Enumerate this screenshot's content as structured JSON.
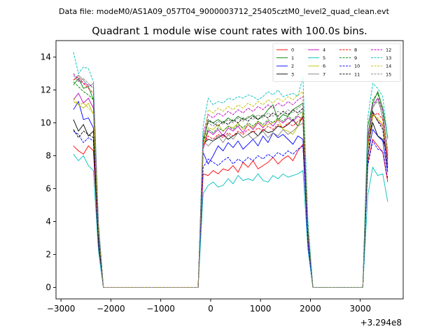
{
  "figure": {
    "suptitle": "Data file: modeM0/AS1A09_057T04_9000003712_25405cztM0_level2_quad_clean.evt",
    "offset_text": "+3.294e8"
  },
  "chart_data": {
    "type": "line",
    "title": "Quadrant 1 module wise count rates with 100.0s bins.",
    "xlabel": "",
    "ylabel": "",
    "xlim": [
      -3100,
      3860
    ],
    "ylim": [
      -0.7,
      15.0
    ],
    "x_ticks": [
      -3000,
      -2000,
      -1000,
      0,
      1000,
      2000,
      3000
    ],
    "x_tick_labels": [
      "−3000",
      "−2000",
      "−1000",
      "0",
      "1000",
      "2000",
      "3000"
    ],
    "y_ticks": [
      0,
      2,
      4,
      6,
      8,
      10,
      12,
      14
    ],
    "y_tick_labels": [
      "0",
      "2",
      "4",
      "6",
      "8",
      "10",
      "12",
      "14"
    ],
    "grid": false,
    "legend_position": "top-right",
    "legend_columns": 4,
    "x": [
      -2750,
      -2650,
      -2550,
      -2450,
      -2350,
      -2250,
      -2150,
      -250,
      -150,
      -50,
      50,
      150,
      250,
      350,
      450,
      550,
      650,
      750,
      850,
      950,
      1050,
      1150,
      1250,
      1350,
      1450,
      1550,
      1650,
      1750,
      1850,
      1950,
      2050,
      3050,
      3150,
      3250,
      3350,
      3450,
      3550
    ],
    "series": [
      {
        "name": "0",
        "color": "#ff0000",
        "dash": "solid",
        "values": [
          8.6,
          8.3,
          8.1,
          8.6,
          8.3,
          2.6,
          0,
          0,
          6.9,
          6.8,
          7.1,
          6.9,
          7.2,
          7.1,
          7.4,
          7.0,
          7.6,
          7.3,
          7.7,
          7.2,
          7.4,
          7.6,
          7.9,
          7.5,
          7.8,
          8.0,
          7.7,
          8.3,
          8.7,
          2.5,
          0,
          0,
          7.6,
          9.0,
          8.6,
          8.2,
          6.4
        ]
      },
      {
        "name": "1",
        "color": "#008000",
        "dash": "solid",
        "values": [
          12.3,
          12.7,
          12.1,
          12.2,
          11.4,
          3.6,
          0,
          0,
          8.8,
          10.1,
          10.0,
          10.2,
          10.0,
          10.3,
          10.1,
          10.4,
          10.2,
          10.3,
          10.5,
          10.2,
          10.4,
          10.8,
          11.1,
          10.2,
          10.5,
          10.4,
          10.8,
          11.0,
          11.2,
          3.6,
          0,
          0,
          9.8,
          11.2,
          11.9,
          10.9,
          9.1
        ]
      },
      {
        "name": "2",
        "color": "#0000ff",
        "dash": "solid",
        "values": [
          10.8,
          11.3,
          10.2,
          10.3,
          9.7,
          3.1,
          0,
          0,
          8.2,
          7.5,
          8.0,
          8.6,
          8.3,
          8.8,
          8.5,
          8.9,
          8.4,
          8.7,
          9.0,
          8.6,
          9.2,
          8.8,
          9.4,
          9.1,
          9.3,
          9.0,
          8.7,
          9.2,
          9.0,
          2.9,
          0,
          0,
          8.0,
          9.6,
          9.2,
          8.9,
          7.0
        ]
      },
      {
        "name": "3",
        "color": "#000000",
        "dash": "solid",
        "values": [
          10.2,
          9.5,
          9.9,
          9.2,
          9.5,
          3.0,
          0,
          0,
          8.7,
          9.0,
          8.9,
          9.1,
          9.3,
          9.0,
          9.2,
          9.4,
          9.1,
          9.3,
          9.5,
          9.2,
          9.6,
          9.4,
          9.5,
          9.8,
          9.7,
          9.9,
          10.2,
          9.8,
          10.4,
          3.2,
          0,
          0,
          8.6,
          10.0,
          9.2,
          9.0,
          8.1
        ]
      },
      {
        "name": "4",
        "color": "#bf00bf",
        "dash": "solid",
        "values": [
          11.4,
          11.8,
          11.2,
          11.5,
          10.9,
          3.5,
          0,
          0,
          8.4,
          9.5,
          9.3,
          9.6,
          9.2,
          9.7,
          9.5,
          9.8,
          9.4,
          9.9,
          9.6,
          10.0,
          9.7,
          10.1,
          9.8,
          10.2,
          10.0,
          10.3,
          10.1,
          10.4,
          10.2,
          3.3,
          0,
          0,
          8.9,
          10.6,
          10.1,
          9.8,
          7.4
        ]
      },
      {
        "name": "5",
        "color": "#00bfbf",
        "dash": "solid",
        "values": [
          8.1,
          7.7,
          8.0,
          7.4,
          7.1,
          2.2,
          0,
          0,
          5.7,
          6.2,
          6.4,
          6.1,
          6.2,
          6.6,
          6.3,
          6.8,
          6.5,
          6.6,
          6.5,
          6.9,
          6.5,
          6.4,
          6.8,
          6.6,
          6.9,
          6.7,
          6.8,
          6.9,
          7.1,
          2.3,
          0,
          0,
          5.6,
          7.3,
          6.8,
          6.9,
          5.2
        ]
      },
      {
        "name": "6",
        "color": "#bfbf00",
        "dash": "solid",
        "values": [
          11.3,
          11.1,
          10.9,
          11.2,
          10.5,
          3.4,
          0,
          0,
          8.5,
          9.7,
          9.6,
          9.9,
          9.5,
          9.8,
          9.7,
          10.0,
          9.6,
          9.9,
          9.7,
          10.1,
          9.8,
          9.9,
          10.0,
          10.2,
          9.6,
          9.5,
          9.3,
          9.8,
          10.6,
          3.3,
          0,
          0,
          8.4,
          10.5,
          10.2,
          9.9,
          7.9
        ]
      },
      {
        "name": "7",
        "color": "#808080",
        "dash": "solid",
        "values": [
          12.6,
          12.9,
          12.6,
          12.2,
          12.4,
          3.9,
          0,
          0,
          8.9,
          8.6,
          8.9,
          9.2,
          8.8,
          9.3,
          9.0,
          9.4,
          9.1,
          9.3,
          9.0,
          9.2,
          9.5,
          9.1,
          9.4,
          9.2,
          9.6,
          9.3,
          9.5,
          9.8,
          10.0,
          3.1,
          0,
          0,
          8.8,
          10.9,
          11.5,
          10.3,
          7.6
        ]
      },
      {
        "name": "8",
        "color": "#ff0000",
        "dash": "dashed",
        "values": [
          12.6,
          12.8,
          12.4,
          12.1,
          11.8,
          3.7,
          0,
          0,
          8.6,
          9.2,
          9.0,
          9.3,
          9.1,
          9.4,
          9.2,
          9.5,
          9.3,
          9.6,
          9.4,
          9.7,
          9.5,
          9.8,
          9.6,
          9.9,
          9.7,
          10.0,
          9.8,
          10.1,
          10.3,
          3.2,
          0,
          0,
          8.7,
          10.4,
          10.6,
          10.2,
          7.8
        ]
      },
      {
        "name": "9",
        "color": "#008000",
        "dash": "dashed",
        "values": [
          12.5,
          12.2,
          11.9,
          11.7,
          11.4,
          3.6,
          0,
          0,
          8.8,
          9.6,
          9.4,
          9.7,
          9.5,
          9.8,
          9.6,
          9.9,
          9.7,
          10.0,
          9.8,
          10.1,
          9.9,
          10.2,
          10.0,
          10.3,
          10.1,
          10.4,
          10.2,
          10.5,
          10.7,
          3.4,
          0,
          0,
          9.0,
          11.4,
          11.8,
          10.6,
          8.3
        ]
      },
      {
        "name": "10",
        "color": "#0000ff",
        "dash": "dashed",
        "values": [
          9.5,
          9.3,
          8.8,
          9.1,
          8.9,
          2.8,
          0,
          0,
          7.3,
          7.8,
          7.6,
          7.4,
          7.7,
          7.9,
          7.5,
          7.8,
          7.6,
          7.9,
          7.7,
          8.0,
          7.8,
          8.1,
          7.9,
          8.2,
          8.0,
          8.3,
          8.1,
          8.4,
          8.6,
          2.7,
          0,
          0,
          7.4,
          8.9,
          8.4,
          8.3,
          6.6
        ]
      },
      {
        "name": "11",
        "color": "#000000",
        "dash": "dashed",
        "values": [
          9.6,
          9.1,
          9.5,
          9.3,
          9.1,
          2.9,
          0,
          0,
          8.9,
          10.2,
          10.0,
          9.8,
          10.1,
          9.9,
          10.2,
          10.0,
          10.3,
          10.1,
          10.4,
          10.2,
          10.5,
          10.3,
          10.6,
          10.4,
          10.7,
          10.5,
          10.8,
          10.6,
          10.9,
          3.5,
          0,
          0,
          7.8,
          10.7,
          10.1,
          9.6,
          7.2
        ]
      },
      {
        "name": "12",
        "color": "#bf00bf",
        "dash": "dashed",
        "values": [
          13.0,
          12.6,
          12.4,
          12.3,
          12.2,
          3.8,
          0,
          0,
          9.3,
          10.5,
          10.3,
          10.6,
          10.4,
          10.7,
          10.5,
          10.8,
          10.6,
          10.9,
          10.7,
          11.0,
          10.8,
          11.1,
          10.9,
          11.2,
          11.0,
          11.3,
          11.1,
          11.4,
          11.6,
          3.7,
          0,
          0,
          9.2,
          11.1,
          11.5,
          10.8,
          8.0
        ]
      },
      {
        "name": "13",
        "color": "#00bfbf",
        "dash": "dashed",
        "values": [
          14.3,
          13.0,
          13.4,
          13.3,
          12.5,
          4.0,
          0,
          0,
          9.8,
          11.5,
          11.1,
          11.3,
          11.2,
          11.5,
          11.4,
          11.6,
          11.5,
          11.7,
          11.6,
          11.4,
          11.6,
          11.9,
          11.7,
          12.0,
          11.6,
          11.7,
          11.8,
          11.6,
          12.8,
          4.1,
          0,
          0,
          10.3,
          12.4,
          12.1,
          11.6,
          9.0
        ]
      },
      {
        "name": "14",
        "color": "#bfbf00",
        "dash": "dashed",
        "values": [
          11.5,
          11.1,
          11.2,
          10.9,
          10.6,
          3.4,
          0,
          0,
          8.6,
          10.8,
          10.6,
          10.9,
          10.7,
          11.0,
          10.8,
          11.1,
          10.9,
          11.2,
          11.0,
          11.3,
          11.1,
          11.4,
          11.2,
          11.5,
          11.3,
          11.6,
          11.4,
          11.7,
          11.9,
          3.6,
          0,
          0,
          8.9,
          10.5,
          10.3,
          9.9,
          8.1
        ]
      },
      {
        "name": "15",
        "color": "#808080",
        "dash": "dashed",
        "values": [
          12.9,
          12.5,
          12.7,
          12.4,
          12.1,
          3.8,
          0,
          0,
          9.1,
          10.0,
          9.8,
          10.1,
          9.9,
          10.2,
          10.0,
          10.3,
          10.1,
          10.4,
          10.2,
          10.5,
          10.3,
          10.6,
          10.4,
          10.7,
          10.5,
          10.8,
          10.6,
          10.9,
          11.1,
          3.5,
          0,
          0,
          8.9,
          11.0,
          11.3,
          10.7,
          8.3
        ]
      }
    ]
  }
}
